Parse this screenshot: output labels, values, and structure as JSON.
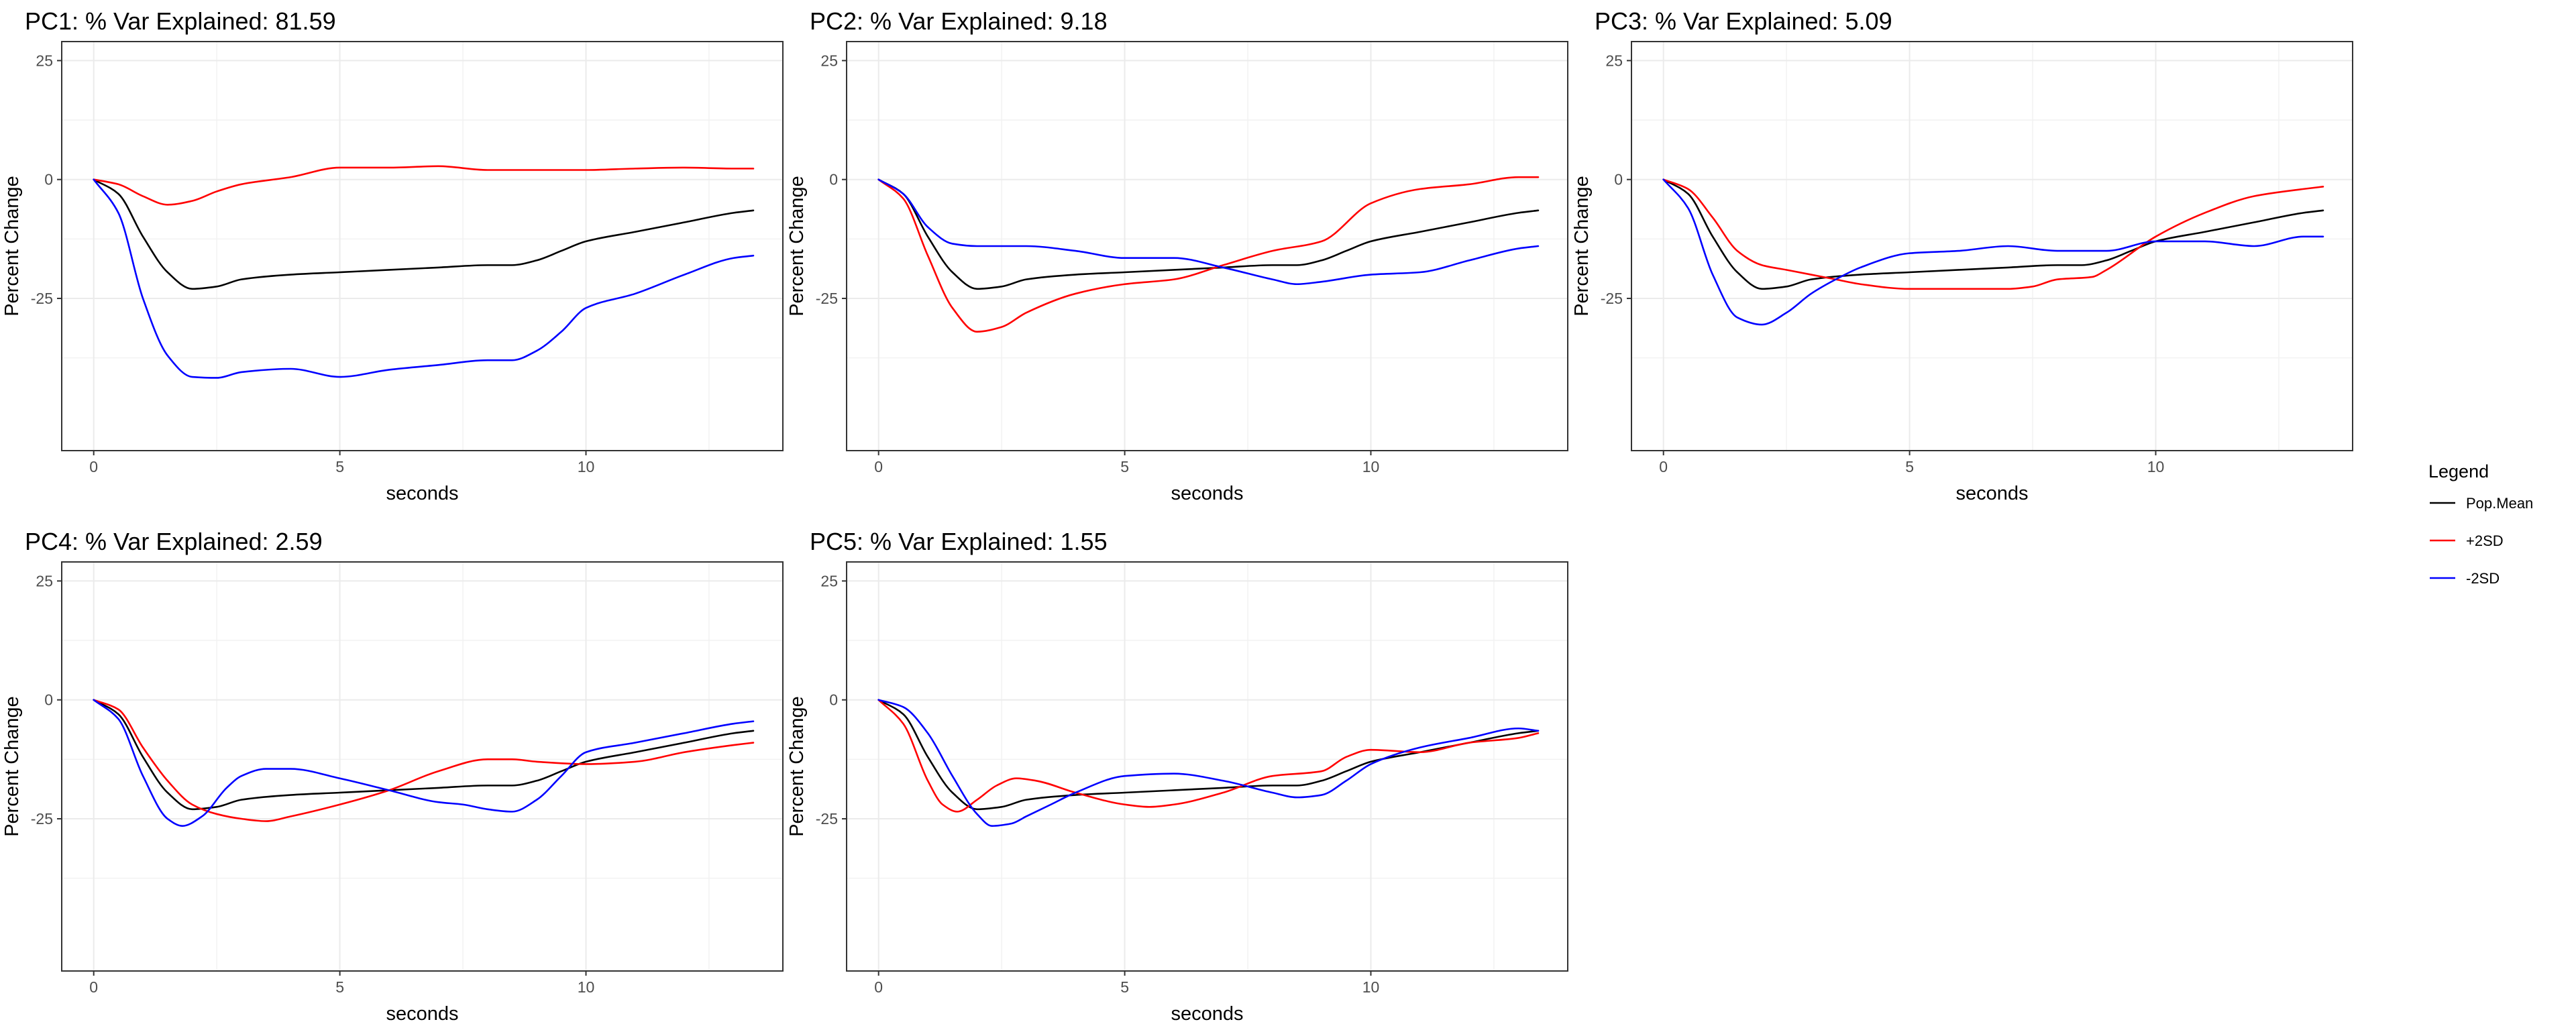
{
  "chart_data": {
    "type": "line",
    "legend": {
      "title": "Legend",
      "position": "right",
      "entries": [
        {
          "label": "Pop.Mean",
          "color": "#000000"
        },
        {
          "label": "+2SD",
          "color": "#ff0000"
        },
        {
          "label": "-2SD",
          "color": "#0000ff"
        }
      ]
    },
    "panels": [
      {
        "title": "PC1: % Var Explained: 81.59",
        "xlabel": "seconds",
        "ylabel": "Percent Change",
        "xlim": [
          -0.65,
          14
        ],
        "ylim": [
          -57,
          29
        ],
        "xticks": [
          0,
          5,
          10
        ],
        "yticks": [
          25,
          0,
          -25
        ],
        "series": [
          {
            "name": "Pop.Mean",
            "color": "#000000",
            "x": [
              0,
              0.5,
              1,
              1.5,
              2,
              2.5,
              3,
              4,
              5,
              6,
              7,
              8,
              8.5,
              9,
              9.5,
              10,
              11,
              12,
              13,
              13.4
            ],
            "y": [
              0,
              -3,
              -12,
              -19.5,
              -23,
              -22.5,
              -21,
              -20,
              -19.5,
              -19,
              -18.5,
              -18,
              -18,
              -17,
              -15,
              -13,
              -11,
              -9,
              -7,
              -6.5
            ]
          },
          {
            "name": "+2SD",
            "color": "#ff0000",
            "x": [
              0,
              0.5,
              1,
              1.5,
              2,
              2.5,
              3,
              4,
              5,
              6,
              7,
              8,
              9,
              10,
              11,
              12,
              13,
              13.4
            ],
            "y": [
              0,
              -1,
              -3.5,
              -5.3,
              -4.5,
              -2.5,
              -1,
              0.5,
              2.5,
              2.5,
              2.8,
              2,
              2,
              2,
              2.3,
              2.5,
              2.3,
              2.3
            ]
          },
          {
            "name": "-2SD",
            "color": "#0000ff",
            "x": [
              0,
              0.5,
              1,
              1.5,
              2,
              2.5,
              3,
              4,
              5,
              6,
              7,
              8,
              8.5,
              9,
              9.5,
              10,
              11,
              12,
              13,
              13.4
            ],
            "y": [
              0,
              -7,
              -25,
              -37,
              -41.5,
              -41.7,
              -40.5,
              -39.8,
              -41.5,
              -40,
              -39,
              -38,
              -38,
              -36,
              -32,
              -27,
              -24,
              -20,
              -16.5,
              -16
            ]
          }
        ]
      },
      {
        "title": "PC2: % Var Explained: 9.18",
        "xlabel": "seconds",
        "ylabel": "Percent Change",
        "xlim": [
          -0.65,
          14
        ],
        "ylim": [
          -57,
          29
        ],
        "xticks": [
          0,
          5,
          10
        ],
        "yticks": [
          25,
          0,
          -25
        ],
        "series": [
          {
            "name": "Pop.Mean",
            "color": "#000000",
            "x": [
              0,
              0.5,
              1,
              1.5,
              2,
              2.5,
              3,
              4,
              5,
              6,
              7,
              8,
              8.5,
              9,
              9.5,
              10,
              11,
              12,
              13,
              13.4
            ],
            "y": [
              0,
              -3,
              -12,
              -19.5,
              -23,
              -22.5,
              -21,
              -20,
              -19.5,
              -19,
              -18.5,
              -18,
              -18,
              -17,
              -15,
              -13,
              -11,
              -9,
              -7,
              -6.5
            ]
          },
          {
            "name": "+2SD",
            "color": "#ff0000",
            "x": [
              0,
              0.5,
              1,
              1.5,
              2,
              2.5,
              3,
              4,
              5,
              6,
              7,
              8,
              9,
              10,
              11,
              12,
              13,
              13.4
            ],
            "y": [
              0,
              -4,
              -16,
              -27,
              -32,
              -31,
              -28,
              -24,
              -22,
              -21,
              -18,
              -15,
              -13,
              -5,
              -2,
              -1,
              0.5,
              0.5
            ]
          },
          {
            "name": "-2SD",
            "color": "#0000ff",
            "x": [
              0,
              0.5,
              1,
              1.5,
              2,
              3,
              4,
              5,
              6,
              7,
              8,
              8.5,
              9,
              10,
              11,
              12,
              13,
              13.4
            ],
            "y": [
              0,
              -3,
              -10,
              -13.5,
              -14,
              -14,
              -15,
              -16.5,
              -16.5,
              -18.5,
              -21,
              -22,
              -21.5,
              -20,
              -19.5,
              -17,
              -14.5,
              -14
            ]
          }
        ]
      },
      {
        "title": "PC3: % Var Explained: 5.09",
        "xlabel": "seconds",
        "ylabel": "Percent Change",
        "xlim": [
          -0.65,
          14
        ],
        "ylim": [
          -57,
          29
        ],
        "xticks": [
          0,
          5,
          10
        ],
        "yticks": [
          25,
          0,
          -25
        ],
        "series": [
          {
            "name": "Pop.Mean",
            "color": "#000000",
            "x": [
              0,
              0.5,
              1,
              1.5,
              2,
              2.5,
              3,
              4,
              5,
              6,
              7,
              8,
              8.5,
              9,
              9.5,
              10,
              11,
              12,
              13,
              13.4
            ],
            "y": [
              0,
              -3,
              -12,
              -19.5,
              -23,
              -22.5,
              -21,
              -20,
              -19.5,
              -19,
              -18.5,
              -18,
              -18,
              -17,
              -15,
              -13,
              -11,
              -9,
              -7,
              -6.5
            ]
          },
          {
            "name": "+2SD",
            "color": "#ff0000",
            "x": [
              0,
              0.5,
              1,
              1.5,
              2,
              2.5,
              3,
              3.5,
              4,
              5,
              6,
              7,
              7.5,
              8,
              8.7,
              9,
              10,
              11,
              12,
              13,
              13.4
            ],
            "y": [
              0,
              -2,
              -8,
              -15,
              -18,
              -19,
              -20,
              -21,
              -22,
              -23,
              -23,
              -23,
              -22.5,
              -21,
              -20.5,
              -19,
              -12,
              -7,
              -3.5,
              -2,
              -1.5
            ]
          },
          {
            "name": "-2SD",
            "color": "#0000ff",
            "x": [
              0,
              0.5,
              1,
              1.5,
              2,
              2.5,
              3,
              3.5,
              4,
              5,
              6,
              7,
              8,
              9,
              10,
              11,
              12,
              13,
              13.4
            ],
            "y": [
              0,
              -6,
              -20,
              -29,
              -30.5,
              -28,
              -24,
              -21,
              -18.5,
              -15.5,
              -15,
              -14,
              -15,
              -15,
              -13,
              -13,
              -14,
              -12,
              -12
            ]
          }
        ]
      },
      {
        "title": "PC4: % Var Explained: 2.59",
        "xlabel": "seconds",
        "ylabel": "Percent Change",
        "xlim": [
          -0.65,
          14
        ],
        "ylim": [
          -57,
          29
        ],
        "xticks": [
          0,
          5,
          10
        ],
        "yticks": [
          25,
          0,
          -25
        ],
        "series": [
          {
            "name": "Pop.Mean",
            "color": "#000000",
            "x": [
              0,
              0.5,
              1,
              1.5,
              2,
              2.5,
              3,
              4,
              5,
              6,
              7,
              8,
              8.5,
              9,
              9.5,
              10,
              11,
              12,
              13,
              13.4
            ],
            "y": [
              0,
              -3,
              -12,
              -19.5,
              -23,
              -22.5,
              -21,
              -20,
              -19.5,
              -19,
              -18.5,
              -18,
              -18,
              -17,
              -15,
              -13,
              -11,
              -9,
              -7,
              -6.5
            ]
          },
          {
            "name": "+2SD",
            "color": "#ff0000",
            "x": [
              0,
              0.5,
              1,
              1.5,
              2,
              2.5,
              3,
              3.5,
              4,
              5,
              6,
              7,
              8,
              8.5,
              9,
              10,
              11,
              12,
              13,
              13.4
            ],
            "y": [
              0,
              -2,
              -10,
              -17,
              -22,
              -24,
              -25,
              -25.5,
              -24.5,
              -22,
              -19,
              -15,
              -12.5,
              -12.5,
              -13,
              -13.5,
              -13,
              -11,
              -9.5,
              -9
            ]
          },
          {
            "name": "-2SD",
            "color": "#0000ff",
            "x": [
              0,
              0.5,
              1,
              1.5,
              1.8,
              2.2,
              2.7,
              3,
              3.5,
              4,
              5,
              6,
              7,
              7.5,
              8,
              8.5,
              9,
              9.5,
              10,
              11,
              12,
              13,
              13.4
            ],
            "y": [
              0,
              -4,
              -16,
              -25,
              -26.5,
              -24.5,
              -18.5,
              -16,
              -14.5,
              -14.5,
              -16.5,
              -19,
              -21.5,
              -22,
              -23,
              -23.5,
              -21,
              -16,
              -11,
              -9,
              -7,
              -5,
              -4.5
            ]
          }
        ]
      },
      {
        "title": "PC5: % Var Explained: 1.55",
        "xlabel": "seconds",
        "ylabel": "Percent Change",
        "xlim": [
          -0.65,
          14
        ],
        "ylim": [
          -57,
          29
        ],
        "xticks": [
          0,
          5,
          10
        ],
        "yticks": [
          25,
          0,
          -25
        ],
        "series": [
          {
            "name": "Pop.Mean",
            "color": "#000000",
            "x": [
              0,
              0.5,
              1,
              1.5,
              2,
              2.5,
              3,
              4,
              5,
              6,
              7,
              8,
              8.5,
              9,
              9.5,
              10,
              11,
              12,
              13,
              13.4
            ],
            "y": [
              0,
              -3,
              -12,
              -19.5,
              -23,
              -22.5,
              -21,
              -20,
              -19.5,
              -19,
              -18.5,
              -18,
              -18,
              -17,
              -15,
              -13,
              -11,
              -9,
              -7,
              -6.5
            ]
          },
          {
            "name": "+2SD",
            "color": "#ff0000",
            "x": [
              0,
              0.5,
              1,
              1.3,
              1.6,
              2,
              2.4,
              2.8,
              3.2,
              4,
              5,
              5.5,
              6,
              7,
              8,
              9,
              9.5,
              10,
              11,
              12,
              13,
              13.4
            ],
            "y": [
              0,
              -5,
              -17,
              -22,
              -23.5,
              -21,
              -18,
              -16.5,
              -17,
              -19.5,
              -22,
              -22.5,
              -22,
              -19.5,
              -16,
              -15,
              -12,
              -10.5,
              -11,
              -9,
              -8,
              -7
            ]
          },
          {
            "name": "-2SD",
            "color": "#0000ff",
            "x": [
              0,
              0.5,
              1,
              1.5,
              2,
              2.3,
              2.7,
              3,
              3.5,
              4,
              5,
              6,
              7,
              8,
              8.5,
              9,
              9.5,
              10,
              11,
              12,
              13,
              13.4
            ],
            "y": [
              0,
              -1.5,
              -7,
              -16,
              -24,
              -26.5,
              -26,
              -24.5,
              -22,
              -19.5,
              -16,
              -15.5,
              -17,
              -19.5,
              -20.5,
              -20,
              -17,
              -13.5,
              -10,
              -8,
              -6,
              -6.5
            ]
          }
        ]
      }
    ]
  }
}
